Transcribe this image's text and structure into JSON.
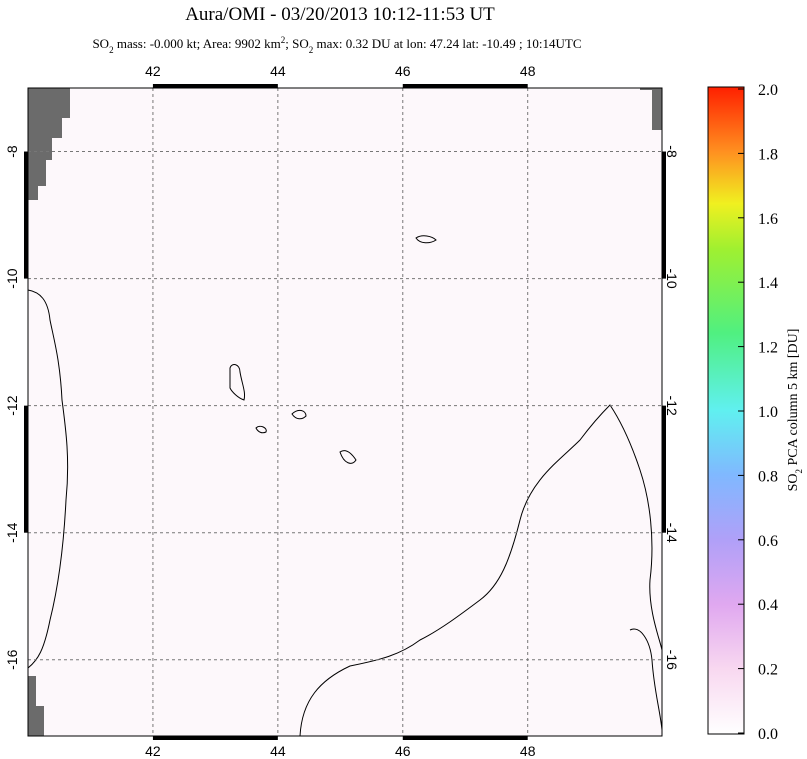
{
  "title": "Aura/OMI - 03/20/2013 10:12-11:53 UT",
  "subtitle": [
    "SO",
    "2",
    " mass: -0.000 kt; Area: 9902 km",
    "2",
    "; SO",
    "2",
    " max: 0.32 DU at lon: 47.24 lat: -10.49 ; 10:14UTC"
  ],
  "map": {
    "lon_range": [
      40,
      50.15
    ],
    "lat_range": [
      -7,
      -17.2
    ],
    "lon_ticks": [
      42,
      44,
      46,
      48
    ],
    "lat_ticks": [
      -8,
      -10,
      -12,
      -14,
      -16
    ]
  },
  "colorbar": {
    "label": [
      "SO",
      "2",
      " PCA column 5 km [DU]"
    ],
    "range": [
      0,
      2
    ],
    "ticks": [
      {
        "value": 0,
        "label": "0.0"
      },
      {
        "value": 0.2,
        "label": "0.2"
      },
      {
        "value": 0.4,
        "label": "0.4"
      },
      {
        "value": 0.6,
        "label": "0.6"
      },
      {
        "value": 0.8,
        "label": "0.8"
      },
      {
        "value": 1,
        "label": "1.0"
      },
      {
        "value": 1.2,
        "label": "1.2"
      },
      {
        "value": 1.4,
        "label": "1.4"
      },
      {
        "value": 1.6,
        "label": "1.6"
      },
      {
        "value": 1.8,
        "label": "1.8"
      },
      {
        "value": 2,
        "label": "2.0"
      }
    ]
  }
}
